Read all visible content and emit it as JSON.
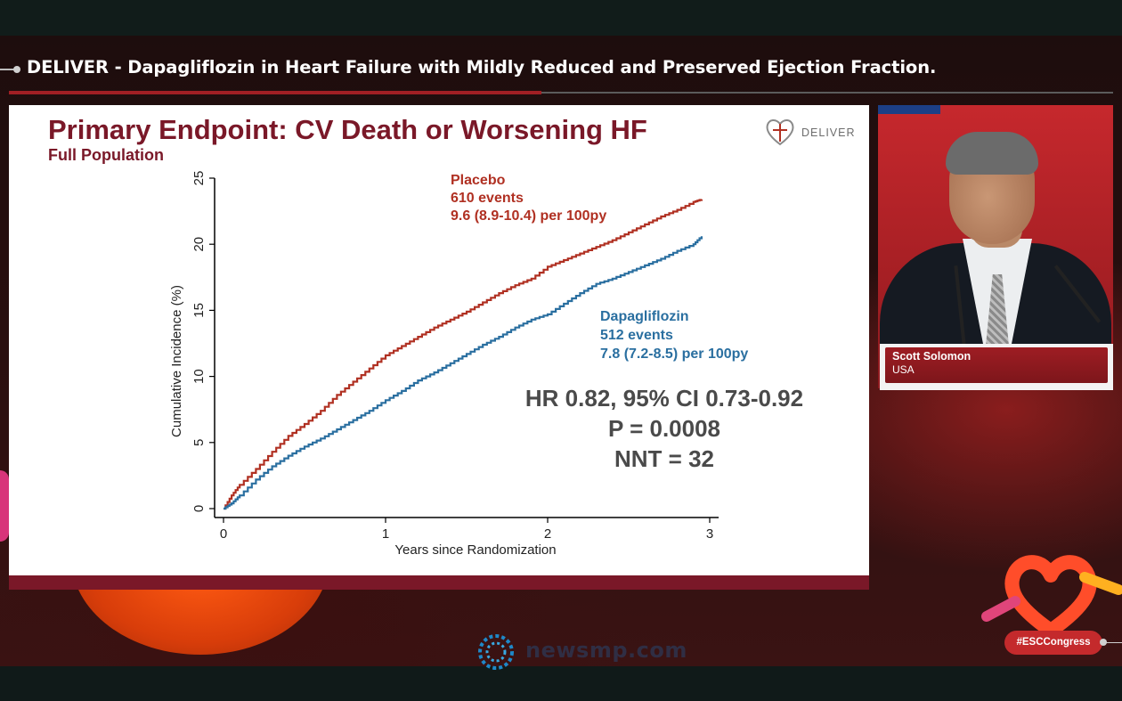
{
  "session": {
    "title": "DELIVER - Dapagliflozin in Heart Failure with Mildly Reduced and Preserved Ejection Fraction."
  },
  "slide": {
    "title": "Primary Endpoint: CV Death or Worsening HF",
    "subtitle": "Full Population",
    "logo_text": "DELIVER",
    "placebo_label": [
      "Placebo",
      "610 events",
      "9.6 (8.9-10.4) per 100py"
    ],
    "dapa_label": [
      "Dapagliflozin",
      "512 events",
      "7.8 (7.2-8.5) per 100py"
    ],
    "stats": [
      "HR 0.82, 95% CI 0.73-0.92",
      "P = 0.0008",
      "NNT = 32"
    ]
  },
  "chart_data": {
    "type": "line",
    "title": "",
    "xlabel": "Years since Randomization",
    "ylabel": "Cumulative Incidence (%)",
    "xlim": [
      0,
      3
    ],
    "ylim": [
      0,
      25
    ],
    "xticks": [
      0,
      1,
      2,
      3
    ],
    "yticks": [
      0,
      5,
      10,
      15,
      20,
      25
    ],
    "grid": false,
    "series": [
      {
        "name": "Placebo",
        "color": "#b03022",
        "x": [
          0,
          0.05,
          0.1,
          0.2,
          0.3,
          0.4,
          0.5,
          0.6,
          0.7,
          0.8,
          0.9,
          1.0,
          1.1,
          1.2,
          1.3,
          1.4,
          1.5,
          1.6,
          1.7,
          1.8,
          1.9,
          2.0,
          2.1,
          2.2,
          2.3,
          2.4,
          2.5,
          2.6,
          2.7,
          2.8,
          2.9,
          2.95
        ],
        "y": [
          0,
          1.0,
          1.8,
          3.0,
          4.3,
          5.5,
          6.4,
          7.4,
          8.6,
          9.6,
          10.6,
          11.6,
          12.3,
          13.0,
          13.7,
          14.3,
          14.9,
          15.6,
          16.3,
          16.9,
          17.4,
          18.3,
          18.8,
          19.3,
          19.8,
          20.3,
          20.9,
          21.5,
          22.1,
          22.6,
          23.2,
          23.4
        ]
      },
      {
        "name": "Dapagliflozin",
        "color": "#2a6fa0",
        "x": [
          0,
          0.05,
          0.1,
          0.2,
          0.3,
          0.4,
          0.5,
          0.6,
          0.7,
          0.8,
          0.9,
          1.0,
          1.1,
          1.2,
          1.3,
          1.4,
          1.5,
          1.6,
          1.7,
          1.8,
          1.9,
          2.0,
          2.1,
          2.2,
          2.3,
          2.4,
          2.5,
          2.6,
          2.7,
          2.8,
          2.9,
          2.95
        ],
        "y": [
          0,
          0.4,
          1.0,
          2.2,
          3.2,
          4.0,
          4.7,
          5.3,
          6.0,
          6.7,
          7.4,
          8.2,
          8.9,
          9.7,
          10.3,
          11.0,
          11.7,
          12.4,
          13.0,
          13.7,
          14.3,
          14.7,
          15.5,
          16.3,
          17.0,
          17.4,
          17.9,
          18.4,
          18.9,
          19.5,
          20.0,
          20.6
        ]
      }
    ]
  },
  "speaker": {
    "name": "Scott Solomon",
    "country": "USA"
  },
  "congress": {
    "hashtag": "#ESCCongress"
  },
  "watermark": {
    "text": "newsmp.com"
  }
}
